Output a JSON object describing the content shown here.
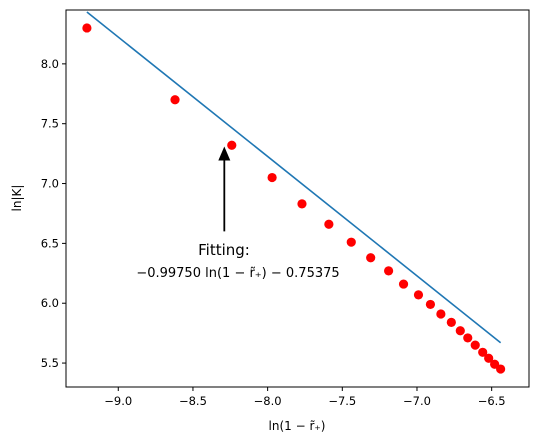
{
  "chart_data": {
    "type": "line",
    "title": "",
    "xlabel": "ln(1 − r̃₊)",
    "ylabel": "ln|K|",
    "xlim": [
      -9.35,
      -6.25
    ],
    "ylim": [
      5.3,
      8.45
    ],
    "xticks": [
      -9.0,
      -8.5,
      -8.0,
      -7.5,
      -7.0,
      -6.5
    ],
    "xtick_labels": [
      "−9.0",
      "−8.5",
      "−8.0",
      "−7.5",
      "−7.0",
      "−6.5"
    ],
    "yticks": [
      5.5,
      6.0,
      6.5,
      7.0,
      7.5,
      8.0
    ],
    "ytick_labels": [
      "5.5",
      "6.0",
      "6.5",
      "7.0",
      "7.5",
      "8.0"
    ],
    "grid": false,
    "fit": {
      "slope": -0.9975,
      "intercept": -0.75375,
      "color": "#1f77b4"
    },
    "points": {
      "color": "#ff0000",
      "x": [
        -9.21,
        -8.62,
        -8.24,
        -7.97,
        -7.77,
        -7.59,
        -7.44,
        -7.31,
        -7.19,
        -7.09,
        -6.99,
        -6.91,
        -6.84,
        -6.77,
        -6.71,
        -6.66,
        -6.61,
        -6.56,
        -6.52,
        -6.48,
        -6.44
      ],
      "y": [
        8.3,
        7.7,
        7.32,
        7.05,
        6.83,
        6.66,
        6.51,
        6.38,
        6.27,
        6.16,
        6.07,
        5.99,
        5.91,
        5.84,
        5.77,
        5.71,
        5.65,
        5.59,
        5.54,
        5.49,
        5.45
      ]
    },
    "annotation": {
      "title": "Fitting:",
      "formula": "−0.99750 ln(1 − r̃₊) − 0.75375",
      "arrow_from": [
        -8.29,
        6.6
      ],
      "arrow_to": [
        -8.29,
        7.31
      ]
    }
  }
}
